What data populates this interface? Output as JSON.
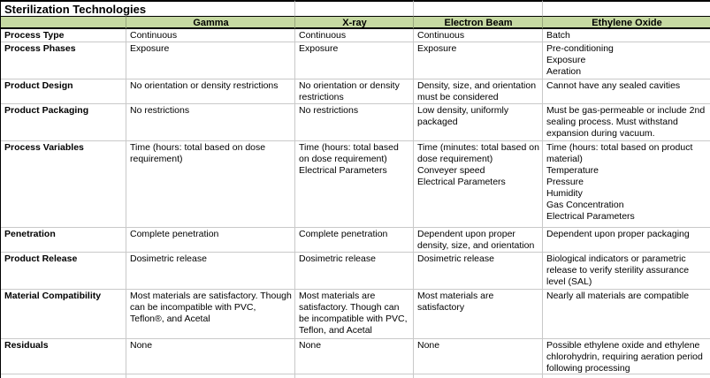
{
  "title": "Sterilization Technologies",
  "colors": {
    "header_bg": "#c6d9a2",
    "header_border": "#000000",
    "gridline": "#c9c9c9",
    "text": "#000000"
  },
  "table": {
    "columns": [
      "Gamma",
      "X-ray",
      "Electron Beam",
      "Ethylene Oxide"
    ],
    "rows": [
      {
        "label": "Process Type",
        "cells": [
          "Continuous",
          "Continuous",
          "Continuous",
          "Batch"
        ]
      },
      {
        "label": "Process Phases",
        "cells": [
          "Exposure",
          "Exposure",
          "Exposure",
          "Pre-conditioning\nExposure\nAeration"
        ]
      },
      {
        "label": "Product Design",
        "cells": [
          "No orientation or density restrictions",
          "No orientation or density restrictions",
          "Density, size, and orientation must be considered",
          "Cannot have any sealed cavities"
        ]
      },
      {
        "label": "Product Packaging",
        "cells": [
          "No restrictions",
          "No restrictions",
          "Low density, uniformly packaged",
          "Must be gas-permeable or include 2nd sealing process. Must withstand expansion during vacuum."
        ]
      },
      {
        "label": "Process Variables",
        "cells": [
          "Time (hours: total based on dose requirement)",
          "Time (hours: total based on dose requirement)\nElectrical Parameters",
          "Time (minutes: total based on dose requirement)\nConveyer speed\nElectrical Parameters",
          "Time (hours: total based on product material)\nTemperature\nPressure\nHumidity\nGas Concentration\nElectrical Parameters"
        ]
      },
      {
        "label": "Penetration",
        "cells": [
          "Complete penetration",
          "Complete penetration",
          "Dependent upon proper density, size, and orientation",
          "Dependent upon proper packaging"
        ]
      },
      {
        "label": "Product Release",
        "cells": [
          "Dosimetric release",
          "Dosimetric release",
          "Dosimetric release",
          "Biological indicators or parametric release to verify sterility assurance level (SAL)"
        ]
      },
      {
        "label": "Material Compatibility",
        "cells": [
          "Most materials are satisfactory. Though can be incompatible with PVC, Teflon®, and Acetal",
          "Most materials are satisfactory. Though can be incompatible with PVC, Teflon, and Acetal",
          "Most materials are satisfactory",
          "Nearly all materials are compatible"
        ]
      },
      {
        "label": "Residuals",
        "cells": [
          "None",
          "None",
          "None",
          "Possible ethylene oxide and ethylene chlorohydrin, requiring aeration period following processing"
        ]
      }
    ]
  }
}
